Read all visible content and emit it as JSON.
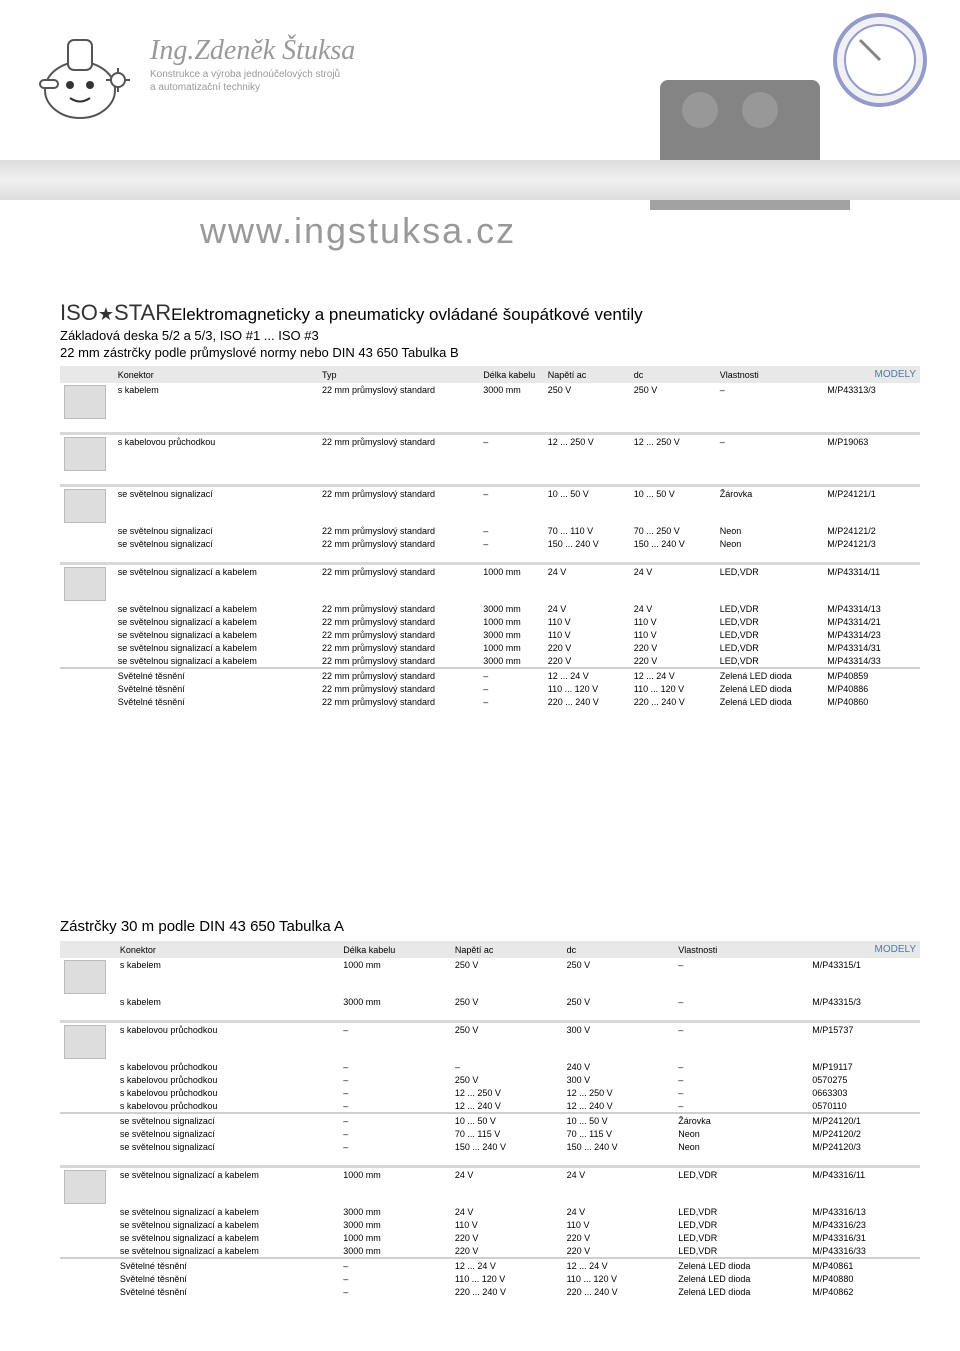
{
  "header": {
    "name": "Ing.Zdeněk Štuksa",
    "sub1": "Konstrukce a výroba jednoúčelových strojů",
    "sub2": "a automatizační techniky",
    "url": "www.INGSTUKSA.cz"
  },
  "section1": {
    "iso": "ISO",
    "star": "★",
    "brand": "STAR",
    "title_rest": "Elektromagneticky a pneumaticky ovládané šoupátkové ventily",
    "sub1": "Základová deska 5/2 a 5/3, ISO #1 ... ISO #3",
    "sub2": "22 mm zástrčky podle průmyslové normy nebo DIN 43 650 Tabulka B",
    "modely": "MODELY",
    "headers": [
      "Konektor",
      "Typ",
      "Délka kabelu",
      "Napětí ac",
      "dc",
      "Vlastnosti",
      ""
    ],
    "groups": [
      {
        "rows": [
          [
            "s kabelem",
            "22 mm průmyslový standard",
            "3000 mm",
            "250 V",
            "250 V",
            "–",
            "M/P43313/3"
          ]
        ]
      },
      {
        "rows": [
          [
            "s kabelovou průchodkou",
            "22 mm průmyslový standard",
            "–",
            "12 ... 250 V",
            "12 ... 250 V",
            "–",
            "M/P19063"
          ]
        ]
      },
      {
        "rows": [
          [
            "se světelnou signalizací",
            "22 mm průmyslový standard",
            "–",
            "10 ... 50 V",
            "10 ... 50 V",
            "Žárovka",
            "M/P24121/1"
          ],
          [
            "se světelnou signalizací",
            "22 mm průmyslový standard",
            "–",
            "70 ... 110 V",
            "70 ... 250 V",
            "Neon",
            "M/P24121/2"
          ],
          [
            "se světelnou signalizací",
            "22 mm průmyslový standard",
            "–",
            "150 ... 240 V",
            "150 ... 240 V",
            "Neon",
            "M/P24121/3"
          ]
        ]
      },
      {
        "rows": [
          [
            "se světelnou signalizací a kabelem",
            "22 mm průmyslový standard",
            "1000 mm",
            "24 V",
            "24 V",
            "LED,VDR",
            "M/P43314/11"
          ],
          [
            "se světelnou signalizací a kabelem",
            "22 mm průmyslový standard",
            "3000 mm",
            "24 V",
            "24 V",
            "LED,VDR",
            "M/P43314/13"
          ],
          [
            "se světelnou signalizací a kabelem",
            "22 mm průmyslový standard",
            "1000 mm",
            "110 V",
            "110 V",
            "LED,VDR",
            "M/P43314/21"
          ],
          [
            "se světelnou signalizací a kabelem",
            "22 mm průmyslový standard",
            "3000 mm",
            "110 V",
            "110 V",
            "LED,VDR",
            "M/P43314/23"
          ],
          [
            "se světelnou signalizací a kabelem",
            "22 mm průmyslový standard",
            "1000 mm",
            "220 V",
            "220 V",
            "LED,VDR",
            "M/P43314/31"
          ],
          [
            "se světelnou signalizací a kabelem",
            "22 mm průmyslový standard",
            "3000 mm",
            "220 V",
            "220 V",
            "LED,VDR",
            "M/P43314/33"
          ]
        ]
      },
      {
        "nothumb": true,
        "rows": [
          [
            "Světelné těsnění",
            "22 mm průmyslový standard",
            "–",
            "12 ... 24 V",
            "12 ... 24 V",
            "Zelená LED dioda",
            "M/P40859"
          ],
          [
            "Světelné těsnění",
            "22 mm průmyslový standard",
            "–",
            "110 ... 120 V",
            "110 ... 120 V",
            "Zelená LED dioda",
            "M/P40886"
          ],
          [
            "Světelné těsnění",
            "22 mm průmyslový standard",
            "–",
            "220 ... 240 V",
            "220 ... 240 V",
            "Zelená LED dioda",
            "M/P40860"
          ]
        ]
      }
    ]
  },
  "section2": {
    "title": "Zástrčky 30 m podle DIN 43 650 Tabulka A",
    "modely": "MODELY",
    "headers": [
      "Konektor",
      "Délka kabelu",
      "Napětí ac",
      "dc",
      "Vlastnosti",
      ""
    ],
    "groups": [
      {
        "rows": [
          [
            "s kabelem",
            "1000 mm",
            "250 V",
            "250 V",
            "–",
            "M/P43315/1"
          ],
          [
            "s kabelem",
            "3000 mm",
            "250 V",
            "250 V",
            "–",
            "M/P43315/3"
          ]
        ]
      },
      {
        "rows": [
          [
            "s kabelovou průchodkou",
            "–",
            "250 V",
            "300 V",
            "–",
            "M/P15737"
          ],
          [
            "s kabelovou průchodkou",
            "–",
            "–",
            "240 V",
            "–",
            "M/P19117"
          ],
          [
            "s kabelovou průchodkou",
            "–",
            "250 V",
            "300 V",
            "–",
            "0570275"
          ],
          [
            "s kabelovou průchodkou",
            "–",
            "12 ... 250 V",
            "12 ... 250 V",
            "–",
            "0663303"
          ],
          [
            "s kabelovou průchodkou",
            "–",
            "12 ... 240 V",
            "12 ... 240 V",
            "–",
            "0570110"
          ]
        ]
      },
      {
        "nothumb": true,
        "rows": [
          [
            "se světelnou signalizací",
            "–",
            "10 ... 50 V",
            "10 ... 50 V",
            "Žárovka",
            "M/P24120/1"
          ],
          [
            "se světelnou signalizací",
            "–",
            "70 ... 115 V",
            "70 ... 115 V",
            "Neon",
            "M/P24120/2"
          ],
          [
            "se světelnou signalizací",
            "–",
            "150 ... 240 V",
            "150 ... 240 V",
            "Neon",
            "M/P24120/3"
          ]
        ]
      },
      {
        "rows": [
          [
            "se světelnou signalizací a kabelem",
            "1000 mm",
            "24 V",
            "24 V",
            "LED,VDR",
            "M/P43316/11"
          ],
          [
            "se světelnou signalizací a kabelem",
            "3000 mm",
            "24 V",
            "24 V",
            "LED,VDR",
            "M/P43316/13"
          ],
          [
            "se světelnou signalizací a kabelem",
            "3000 mm",
            "110 V",
            "110 V",
            "LED,VDR",
            "M/P43316/23"
          ],
          [
            "se světelnou signalizací a kabelem",
            "1000 mm",
            "220 V",
            "220 V",
            "LED,VDR",
            "M/P43316/31"
          ],
          [
            "se světelnou signalizací a kabelem",
            "3000 mm",
            "220 V",
            "220 V",
            "LED,VDR",
            "M/P43316/33"
          ]
        ]
      },
      {
        "nothumb": true,
        "rows": [
          [
            "Světelné těsnění",
            "–",
            "12 ... 24 V",
            "12 ... 24 V",
            "Zelená LED dioda",
            "M/P40861"
          ],
          [
            "Světelné těsnění",
            "–",
            "110 ... 120 V",
            "110 ... 120 V",
            "Zelená LED dioda",
            "M/P40880"
          ],
          [
            "Světelné těsnění",
            "–",
            "220 ... 240 V",
            "220 ... 240 V",
            "Zelená LED dioda",
            "M/P40862"
          ]
        ]
      }
    ]
  }
}
